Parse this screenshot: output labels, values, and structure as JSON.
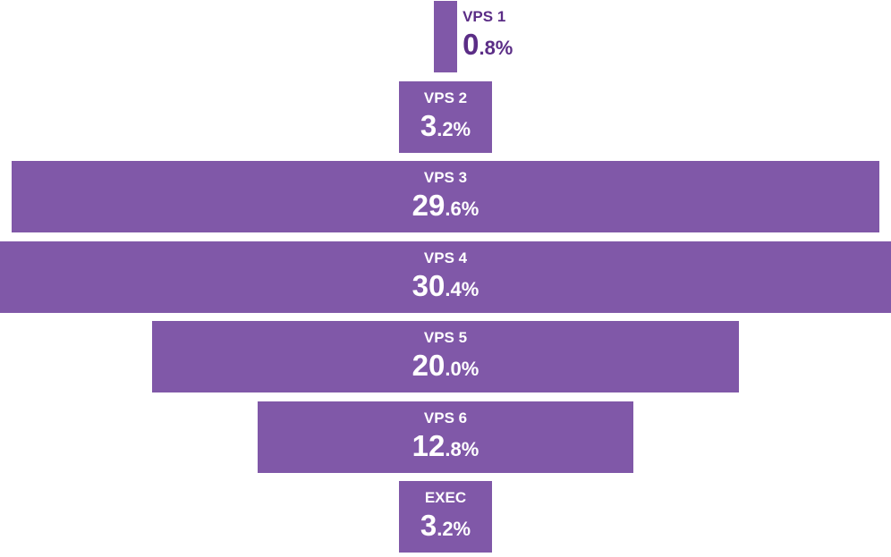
{
  "chart_data": {
    "type": "bar",
    "orientation": "horizontal",
    "layout": "funnel-centered",
    "categories": [
      "VPS 1",
      "VPS 2",
      "VPS 3",
      "VPS 4",
      "VPS 5",
      "VPS 6",
      "EXEC"
    ],
    "values": [
      0.8,
      3.2,
      29.6,
      30.4,
      20.0,
      12.8,
      3.2
    ],
    "value_labels": [
      {
        "int": "0",
        "dec": ".8%"
      },
      {
        "int": "3",
        "dec": ".2%"
      },
      {
        "int": "29",
        "dec": ".6%"
      },
      {
        "int": "30",
        "dec": ".4%"
      },
      {
        "int": "20",
        "dec": ".0%"
      },
      {
        "int": "12",
        "dec": ".8%"
      },
      {
        "int": "3",
        "dec": ".2%"
      }
    ],
    "unit": "%",
    "xlim": [
      0,
      30.4
    ],
    "bar_color": "#8058a8",
    "outside_label_color": "#5b2d86",
    "grid": false,
    "legend": "none"
  }
}
